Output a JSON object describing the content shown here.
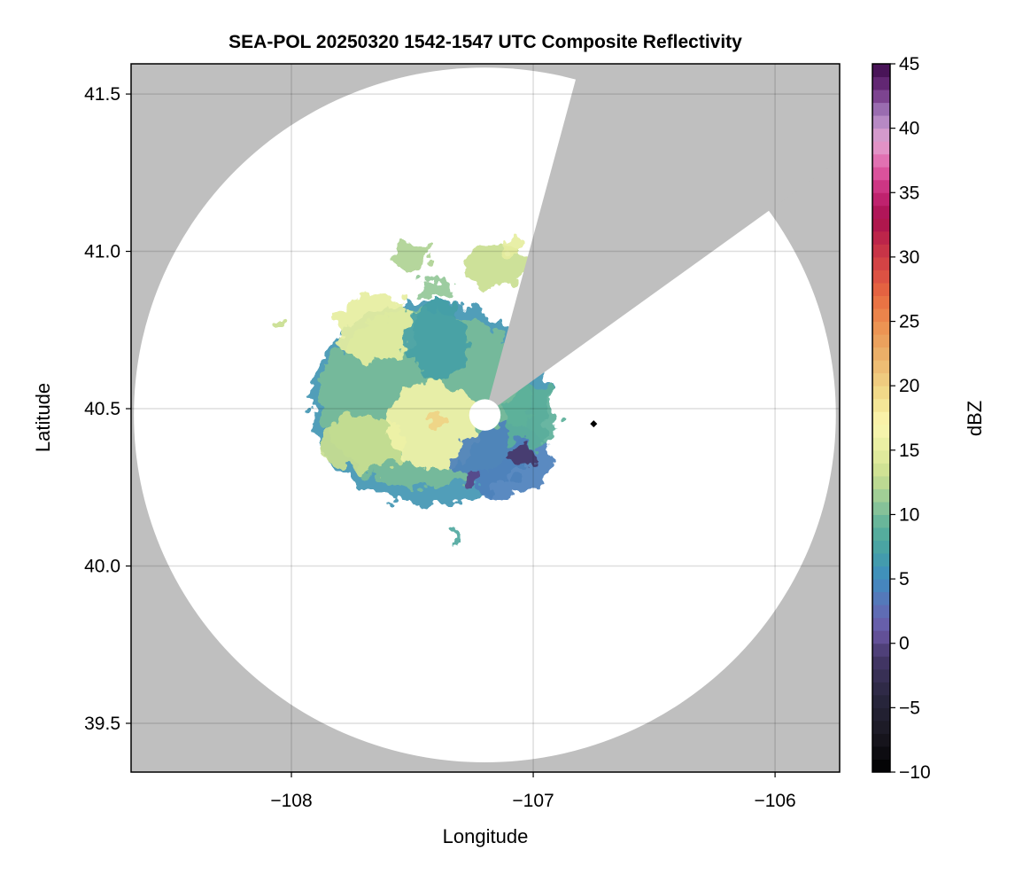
{
  "chart_data": {
    "type": "heatmap",
    "title": "SEA-POL 20250320 1542-1547 UTC Composite Reflectivity",
    "xlabel": "Longitude",
    "ylabel": "Latitude",
    "xlim": [
      -108.663,
      -105.733
    ],
    "ylim": [
      39.345,
      41.596
    ],
    "xticks": [
      -108,
      -107,
      -106
    ],
    "xtick_labels": [
      "−108",
      "−107",
      "−106"
    ],
    "yticks": [
      39.5,
      40.0,
      40.5,
      41.0,
      41.5
    ],
    "ytick_labels": [
      "39.5",
      "40.0",
      "40.5",
      "41.0",
      "41.5"
    ],
    "grid": true,
    "background_color": "#bfbfbf",
    "radar": {
      "lon": -107.2,
      "lat": 40.48,
      "range_deg_lat": 1.104,
      "blocked_azimuth_deg": [
        15,
        54
      ],
      "inner_hole_deg_lat": 0.05
    },
    "marker": {
      "lon": -106.75,
      "lat": 40.452,
      "shape": "diamond",
      "color": "#000000"
    },
    "echo_features": [
      {
        "lon": -107.429,
        "lat": 40.517,
        "rlon": 0.495,
        "rlat": 0.324,
        "dbz": 6
      },
      {
        "lon": -107.447,
        "lat": 40.531,
        "rlon": 0.44,
        "rlat": 0.28,
        "dbz": 10
      },
      {
        "lon": -107.703,
        "lat": 40.39,
        "rlon": 0.183,
        "rlat": 0.085,
        "dbz": 13
      },
      {
        "lon": -107.648,
        "lat": 40.756,
        "rlon": 0.165,
        "rlat": 0.113,
        "dbz": 15
      },
      {
        "lon": -107.41,
        "lat": 40.446,
        "rlon": 0.183,
        "rlat": 0.141,
        "dbz": 16
      },
      {
        "lon": -107.41,
        "lat": 40.46,
        "rlon": 0.03,
        "rlat": 0.025,
        "dbz": 20
      },
      {
        "lon": -107.392,
        "lat": 40.714,
        "rlon": 0.128,
        "rlat": 0.127,
        "dbz": 7
      },
      {
        "lon": -107.117,
        "lat": 40.334,
        "rlon": 0.2,
        "rlat": 0.113,
        "dbz": 4
      },
      {
        "lon": -107.044,
        "lat": 40.348,
        "rlon": 0.066,
        "rlat": 0.028,
        "dbz": -1
      },
      {
        "lon": -107.264,
        "lat": 40.277,
        "rlon": 0.044,
        "rlat": 0.028,
        "dbz": 0
      },
      {
        "lon": -107.007,
        "lat": 40.475,
        "rlon": 0.11,
        "rlat": 0.1,
        "dbz": 9
      },
      {
        "lon": -107.502,
        "lat": 40.982,
        "rlon": 0.073,
        "rlat": 0.05,
        "dbz": 12
      },
      {
        "lon": -107.41,
        "lat": 40.883,
        "rlon": 0.073,
        "rlat": 0.034,
        "dbz": 11
      },
      {
        "lon": -107.154,
        "lat": 40.954,
        "rlon": 0.128,
        "rlat": 0.07,
        "dbz": 13
      },
      {
        "lon": -107.08,
        "lat": 41.024,
        "rlon": 0.055,
        "rlat": 0.028,
        "dbz": 15
      },
      {
        "lon": -108.051,
        "lat": 40.768,
        "rlon": 0.02,
        "rlat": 0.012,
        "dbz": 13
      },
      {
        "lon": -107.319,
        "lat": 40.094,
        "rlon": 0.01,
        "rlat": 0.03,
        "dbz": 8
      }
    ],
    "colorbar": {
      "label": "dBZ",
      "range": [
        -10,
        45
      ],
      "step": 1,
      "ticks": [
        -10,
        -5,
        0,
        5,
        10,
        15,
        20,
        25,
        30,
        35,
        40,
        45
      ],
      "tick_labels": [
        "−10",
        "−5",
        "0",
        "5",
        "10",
        "15",
        "20",
        "25",
        "30",
        "35",
        "40",
        "45"
      ],
      "color_stops": [
        [
          -10,
          "#000000"
        ],
        [
          -7,
          "#1a1822"
        ],
        [
          -4,
          "#2a2740"
        ],
        [
          -1,
          "#45386a"
        ],
        [
          1,
          "#6b58a6"
        ],
        [
          3,
          "#5b73b8"
        ],
        [
          5,
          "#3f8cc0"
        ],
        [
          7,
          "#44a0a6"
        ],
        [
          9,
          "#5bb09a"
        ],
        [
          11,
          "#94c898"
        ],
        [
          13,
          "#c9de90"
        ],
        [
          15,
          "#e6eea0"
        ],
        [
          17,
          "#fbf6b0"
        ],
        [
          19,
          "#f2e08e"
        ],
        [
          21,
          "#eec47a"
        ],
        [
          23,
          "#eaa862"
        ],
        [
          25,
          "#ec8d4e"
        ],
        [
          27,
          "#e86a40"
        ],
        [
          29,
          "#d84a44"
        ],
        [
          31,
          "#c32c48"
        ],
        [
          33,
          "#a8104f"
        ],
        [
          35,
          "#c72878"
        ],
        [
          37,
          "#e060a8"
        ],
        [
          39,
          "#e3a3d0"
        ],
        [
          41,
          "#a880c0"
        ],
        [
          43,
          "#6e3080"
        ],
        [
          45,
          "#3c0a4a"
        ]
      ]
    }
  }
}
